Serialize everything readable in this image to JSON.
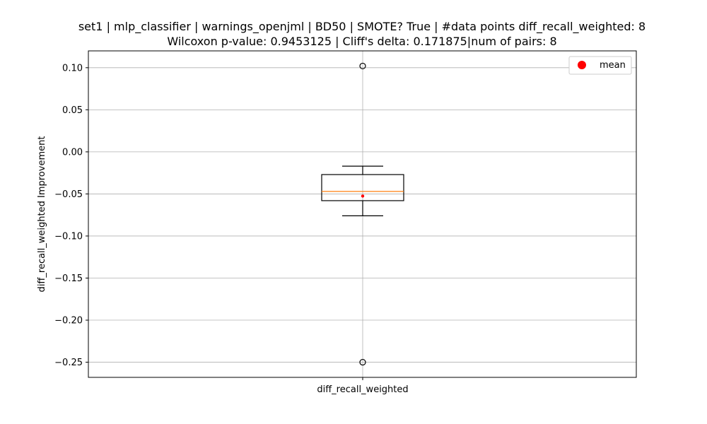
{
  "chart_data": {
    "type": "box",
    "title_line1": "set1 | mlp_classifier | warnings_openjml | BD50 | SMOTE? True | #data points diff_recall_weighted: 8",
    "title_line2": "Wilcoxon p-value: 0.9453125 | Cliff's delta: 0.171875|num of pairs: 8",
    "xlabel": "",
    "ylabel": "diff_recall_weighted Improvement",
    "categories": [
      "diff_recall_weighted"
    ],
    "ylim": [
      -0.268,
      0.12
    ],
    "yticks": [
      0.1,
      0.05,
      0.0,
      -0.05,
      -0.1,
      -0.15,
      -0.2,
      -0.25
    ],
    "ytick_labels": [
      "0.10",
      "0.05",
      "0.00",
      "−0.05",
      "−0.10",
      "−0.15",
      "−0.20",
      "−0.25"
    ],
    "grid": true,
    "legend": {
      "position": "top-right",
      "entries": [
        {
          "label": "mean",
          "color": "#ff0000"
        }
      ]
    },
    "box": {
      "whisker_low": -0.076,
      "q1": -0.058,
      "median": -0.047,
      "q3": -0.027,
      "whisker_high": -0.017,
      "mean": -0.0525,
      "outliers": [
        0.102,
        -0.25
      ]
    },
    "colors": {
      "median": "#ff7f0e",
      "mean": "#ff0000",
      "grid": "#b0b0b0",
      "box": "#000000"
    }
  }
}
